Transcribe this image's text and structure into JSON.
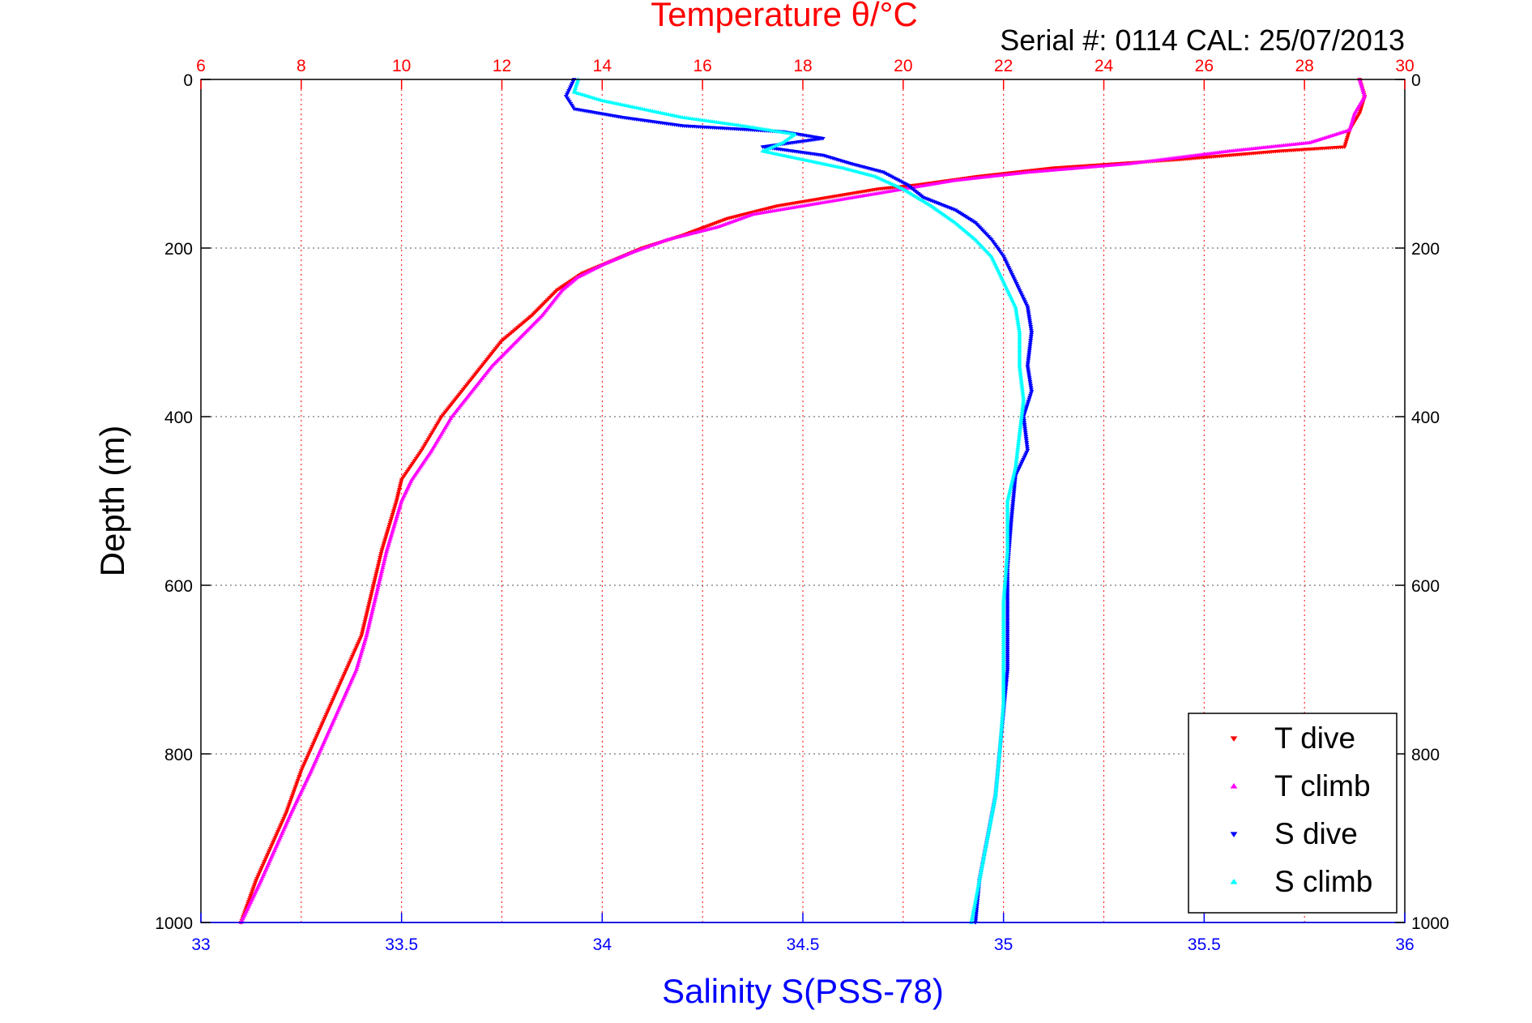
{
  "chart_data": {
    "type": "scatter",
    "title": "Temperature θ/°C",
    "subtitle": "Serial #: 0114  CAL: 25/07/2013",
    "xlabel": "Salinity S(PSS-78)",
    "ylabel": "Depth (m)",
    "x_primary": {
      "label": "Salinity S(PSS-78)",
      "range": [
        33,
        36
      ],
      "ticks": [
        "33",
        "33.5",
        "34",
        "34.5",
        "35",
        "35.5",
        "36"
      ],
      "color": "#0000ff"
    },
    "x_secondary": {
      "label": "Temperature θ/°C",
      "range": [
        6,
        30
      ],
      "ticks": [
        "6",
        "8",
        "10",
        "12",
        "14",
        "16",
        "18",
        "20",
        "22",
        "24",
        "26",
        "28",
        "30"
      ],
      "color": "#ff0000"
    },
    "y_axis": {
      "label": "Depth (m)",
      "range": [
        0,
        1000
      ],
      "inverted": true,
      "ticks": [
        "0",
        "200",
        "400",
        "600",
        "800",
        "1000"
      ]
    },
    "grid": true,
    "legend_position": "bottom-right",
    "series": [
      {
        "name": "T dive",
        "axis": "temperature",
        "marker": "triangle-down",
        "color": "#ff0000",
        "points": [
          [
            29.1,
            0
          ],
          [
            29.2,
            20
          ],
          [
            29.1,
            40
          ],
          [
            28.9,
            60
          ],
          [
            28.8,
            80
          ],
          [
            27.5,
            85
          ],
          [
            25.5,
            95
          ],
          [
            23,
            105
          ],
          [
            21.5,
            115
          ],
          [
            20.3,
            125
          ],
          [
            19.5,
            130
          ],
          [
            18.5,
            140
          ],
          [
            17.5,
            150
          ],
          [
            16.5,
            165
          ],
          [
            15.6,
            185
          ],
          [
            14.8,
            200
          ],
          [
            14.2,
            215
          ],
          [
            13.6,
            230
          ],
          [
            13.1,
            250
          ],
          [
            12.6,
            280
          ],
          [
            12,
            310
          ],
          [
            11.6,
            340
          ],
          [
            11.2,
            370
          ],
          [
            10.8,
            400
          ],
          [
            10.4,
            440
          ],
          [
            10,
            475
          ],
          [
            9.9,
            500
          ],
          [
            9.6,
            560
          ],
          [
            9.4,
            610
          ],
          [
            9.2,
            660
          ],
          [
            8.9,
            700
          ],
          [
            8.6,
            740
          ],
          [
            8.3,
            780
          ],
          [
            8,
            820
          ],
          [
            7.7,
            870
          ],
          [
            7.4,
            910
          ],
          [
            7.1,
            950
          ],
          [
            6.8,
            1000
          ]
        ]
      },
      {
        "name": "T climb",
        "axis": "temperature",
        "marker": "triangle-up",
        "color": "#ff00ff",
        "points": [
          [
            29.1,
            0
          ],
          [
            29.2,
            20
          ],
          [
            29,
            40
          ],
          [
            28.9,
            60
          ],
          [
            28.1,
            75
          ],
          [
            26.5,
            85
          ],
          [
            24.5,
            100
          ],
          [
            22.5,
            110
          ],
          [
            21,
            120
          ],
          [
            20,
            130
          ],
          [
            19,
            140
          ],
          [
            18,
            150
          ],
          [
            17,
            160
          ],
          [
            16.3,
            175
          ],
          [
            15.3,
            190
          ],
          [
            14.6,
            205
          ],
          [
            14,
            220
          ],
          [
            13.5,
            235
          ],
          [
            13.2,
            250
          ],
          [
            12.8,
            280
          ],
          [
            12.3,
            310
          ],
          [
            11.8,
            340
          ],
          [
            11.4,
            370
          ],
          [
            11,
            400
          ],
          [
            10.6,
            440
          ],
          [
            10.2,
            475
          ],
          [
            10,
            500
          ],
          [
            9.7,
            560
          ],
          [
            9.5,
            610
          ],
          [
            9.3,
            660
          ],
          [
            9.1,
            700
          ],
          [
            8.8,
            740
          ],
          [
            8.5,
            780
          ],
          [
            8.2,
            820
          ],
          [
            7.8,
            870
          ],
          [
            7.5,
            910
          ],
          [
            7.2,
            950
          ],
          [
            6.8,
            1000
          ]
        ]
      },
      {
        "name": "S dive",
        "axis": "salinity",
        "marker": "triangle-down",
        "color": "#0000ff",
        "points": [
          [
            33.93,
            0
          ],
          [
            33.91,
            20
          ],
          [
            33.93,
            35
          ],
          [
            34.05,
            45
          ],
          [
            34.2,
            55
          ],
          [
            34.45,
            62
          ],
          [
            34.55,
            70
          ],
          [
            34.4,
            80
          ],
          [
            34.55,
            90
          ],
          [
            34.62,
            100
          ],
          [
            34.7,
            110
          ],
          [
            34.76,
            125
          ],
          [
            34.8,
            140
          ],
          [
            34.88,
            155
          ],
          [
            34.93,
            170
          ],
          [
            34.97,
            190
          ],
          [
            35,
            210
          ],
          [
            35.03,
            240
          ],
          [
            35.06,
            270
          ],
          [
            35.07,
            300
          ],
          [
            35.06,
            340
          ],
          [
            35.07,
            370
          ],
          [
            35.05,
            400
          ],
          [
            35.06,
            440
          ],
          [
            35.03,
            470
          ],
          [
            35.02,
            520
          ],
          [
            35.01,
            580
          ],
          [
            35.01,
            640
          ],
          [
            35.01,
            700
          ],
          [
            35,
            750
          ],
          [
            34.99,
            800
          ],
          [
            34.98,
            850
          ],
          [
            34.96,
            900
          ],
          [
            34.94,
            950
          ],
          [
            34.93,
            1000
          ]
        ]
      },
      {
        "name": "S climb",
        "axis": "salinity",
        "marker": "triangle-up",
        "color": "#00ffff",
        "points": [
          [
            33.94,
            0
          ],
          [
            33.93,
            15
          ],
          [
            34,
            25
          ],
          [
            34.1,
            35
          ],
          [
            34.2,
            45
          ],
          [
            34.35,
            55
          ],
          [
            34.48,
            65
          ],
          [
            34.45,
            75
          ],
          [
            34.4,
            85
          ],
          [
            34.5,
            95
          ],
          [
            34.6,
            105
          ],
          [
            34.68,
            115
          ],
          [
            34.75,
            130
          ],
          [
            34.82,
            150
          ],
          [
            34.88,
            170
          ],
          [
            34.93,
            190
          ],
          [
            34.97,
            210
          ],
          [
            35,
            240
          ],
          [
            35.03,
            270
          ],
          [
            35.04,
            300
          ],
          [
            35.04,
            340
          ],
          [
            35.05,
            380
          ],
          [
            35.04,
            420
          ],
          [
            35.03,
            460
          ],
          [
            35.01,
            500
          ],
          [
            35.01,
            560
          ],
          [
            35,
            620
          ],
          [
            35,
            680
          ],
          [
            35,
            740
          ],
          [
            34.99,
            800
          ],
          [
            34.98,
            850
          ],
          [
            34.96,
            900
          ],
          [
            34.94,
            950
          ],
          [
            34.92,
            1000
          ]
        ]
      }
    ]
  }
}
